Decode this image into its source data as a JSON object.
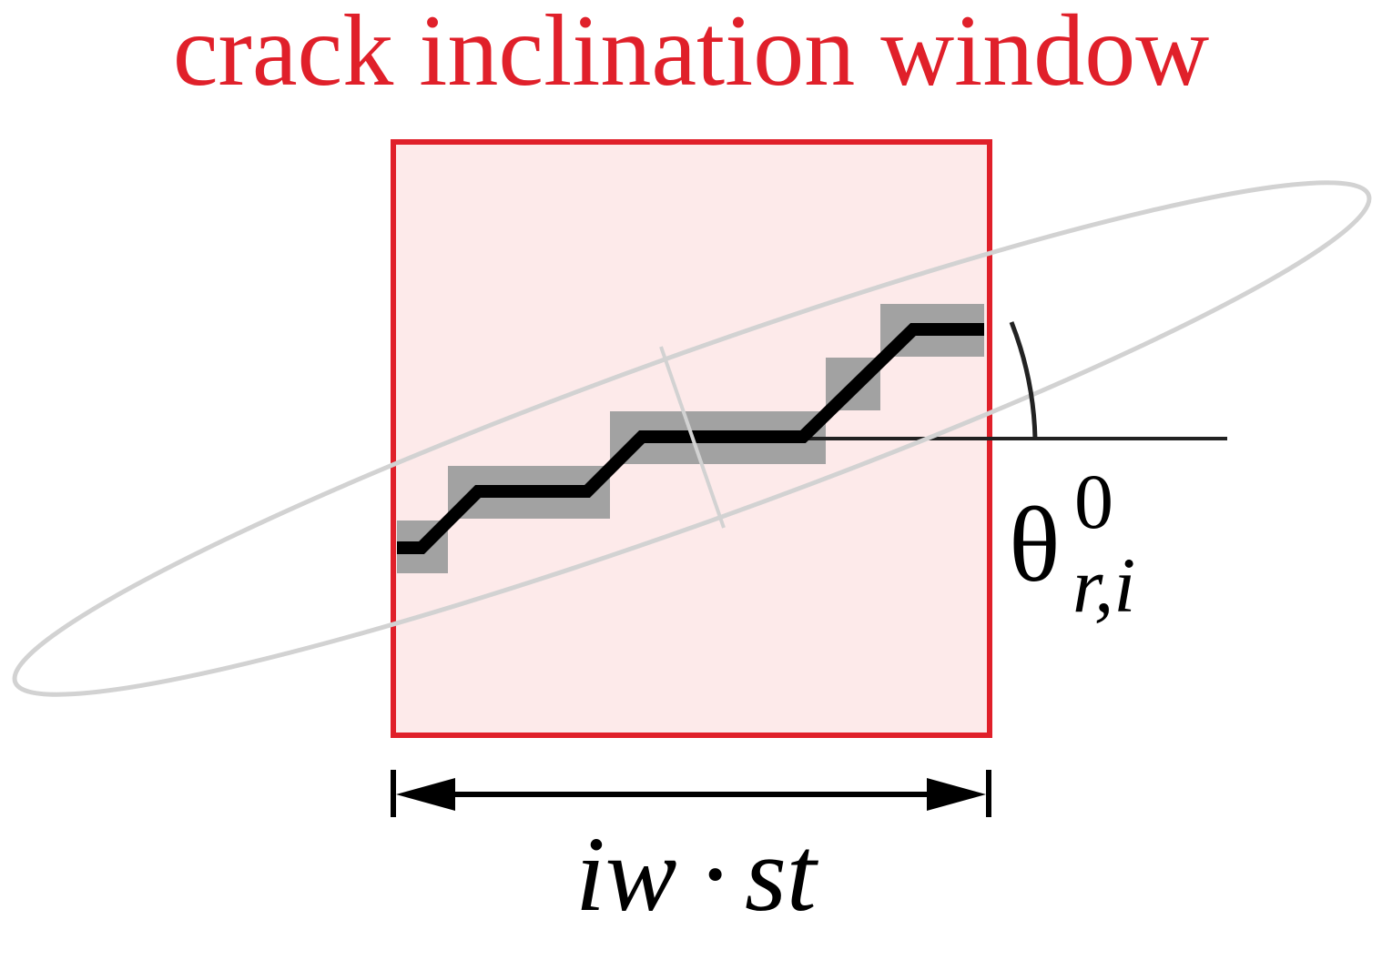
{
  "title": "crack inclination window",
  "angle_label": {
    "symbol": "θ",
    "superscript": "0",
    "subscript": "r,i"
  },
  "width_label": {
    "left": "iw",
    "operator": "·",
    "right": "st"
  },
  "colors": {
    "window_stroke": "#e0202a",
    "window_fill": "#fdeaea",
    "title": "#e0202a",
    "pixel_cells": "#a2a2a2",
    "crack_path": "#000000",
    "ellipse": "#d2d2d2",
    "reference_line": "#222222"
  }
}
